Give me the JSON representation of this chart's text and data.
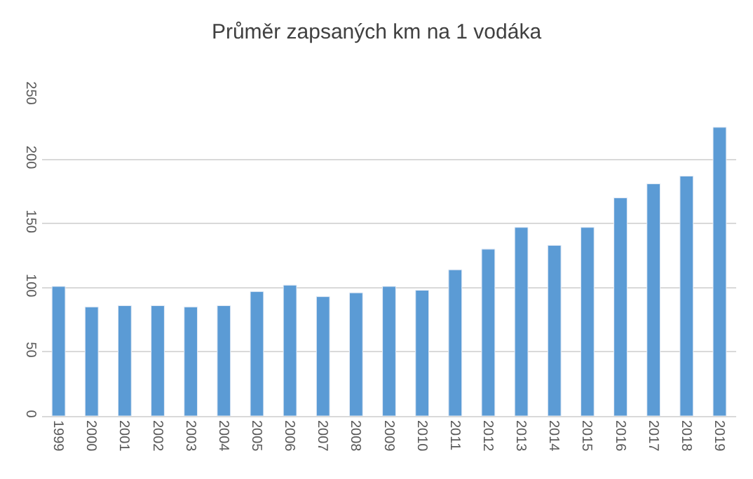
{
  "chart_data": {
    "type": "bar",
    "title": "Průměr zapsaných km na 1 vodáka",
    "categories": [
      "1999",
      "2000",
      "2001",
      "2002",
      "2003",
      "2004",
      "2005",
      "2006",
      "2007",
      "2008",
      "2009",
      "2010",
      "2011",
      "2012",
      "2013",
      "2014",
      "2015",
      "2016",
      "2017",
      "2018",
      "2019"
    ],
    "values": [
      101,
      85,
      86,
      86,
      85,
      86,
      97,
      102,
      93,
      96,
      101,
      98,
      114,
      130,
      147,
      133,
      147,
      170,
      181,
      187,
      225
    ],
    "color": "#5b9bd5",
    "ylim": [
      0,
      250
    ],
    "yticks": [
      0,
      50,
      100,
      150,
      200,
      250
    ],
    "grid": "y"
  }
}
